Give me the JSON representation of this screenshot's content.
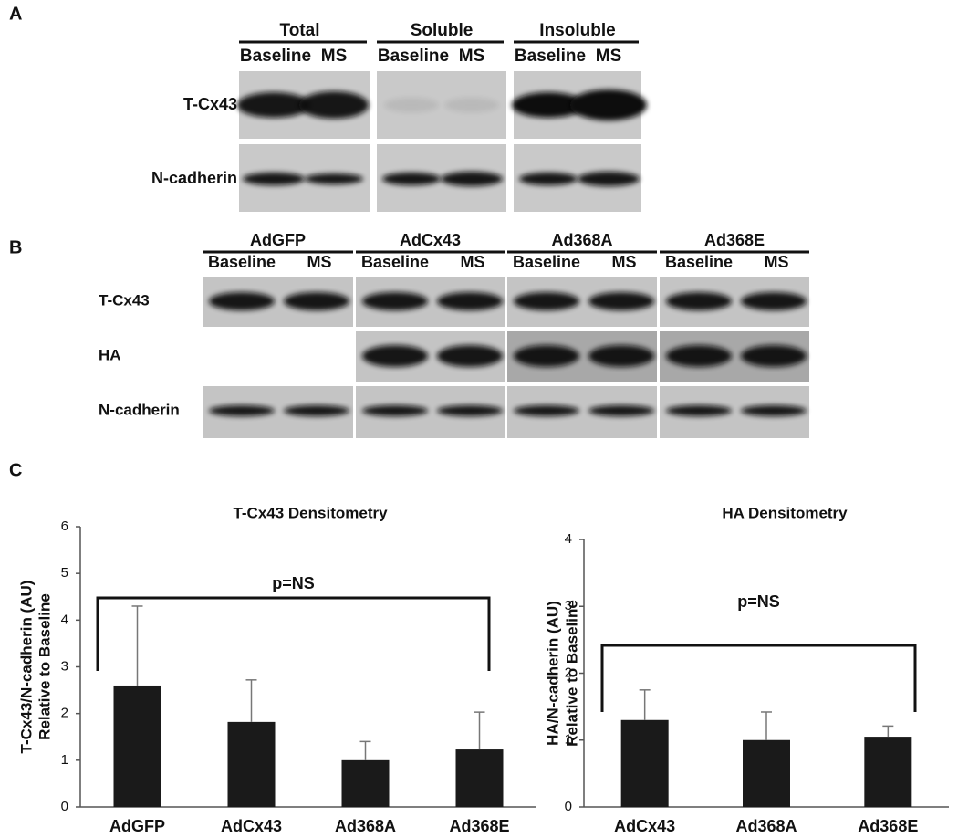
{
  "panel_a": {
    "label": "A",
    "groups": [
      {
        "name": "Total",
        "columns": [
          "Baseline",
          "MS"
        ]
      },
      {
        "name": "Soluble",
        "columns": [
          "Baseline",
          "MS"
        ]
      },
      {
        "name": "Insoluble",
        "columns": [
          "Baseline",
          "MS"
        ]
      }
    ],
    "rows": [
      "T-Cx43",
      "N-cadherin"
    ]
  },
  "panel_b": {
    "label": "B",
    "groups": [
      {
        "name": "AdGFP",
        "columns": [
          "Baseline",
          "MS"
        ]
      },
      {
        "name": "AdCx43",
        "columns": [
          "Baseline",
          "MS"
        ]
      },
      {
        "name": "Ad368A",
        "columns": [
          "Baseline",
          "MS"
        ]
      },
      {
        "name": "Ad368E",
        "columns": [
          "Baseline",
          "MS"
        ]
      }
    ],
    "rows": [
      "T-Cx43",
      "HA",
      "N-cadherin"
    ]
  },
  "panel_c": {
    "label": "C"
  },
  "chart_data": [
    {
      "type": "bar",
      "title": "T-Cx43 Densitometry",
      "y_label": [
        "T-Cx43/N-cadherin (AU)",
        "Relative to Baseline"
      ],
      "categories": [
        "AdGFP",
        "AdCx43",
        "Ad368A",
        "Ad368E"
      ],
      "values": [
        2.6,
        1.82,
        1.0,
        1.23
      ],
      "errors": [
        1.7,
        0.9,
        0.4,
        0.8
      ],
      "color": "#1a1a1a",
      "ylim": [
        0,
        6
      ],
      "yticks": [
        0,
        1,
        2,
        3,
        4,
        5,
        6
      ],
      "annotation": "p=NS"
    },
    {
      "type": "bar",
      "title": "HA Densitometry",
      "y_label": [
        "HA/N-cadherin (AU)",
        "Relative to Baseline"
      ],
      "categories": [
        "AdCx43",
        "Ad368A",
        "Ad368E"
      ],
      "values": [
        1.3,
        1.0,
        1.05
      ],
      "errors": [
        0.45,
        0.42,
        0.16
      ],
      "color": "#1a1a1a",
      "ylim": [
        0,
        4
      ],
      "yticks": [
        0,
        1,
        2,
        3,
        4
      ],
      "annotation": "p=NS"
    }
  ]
}
